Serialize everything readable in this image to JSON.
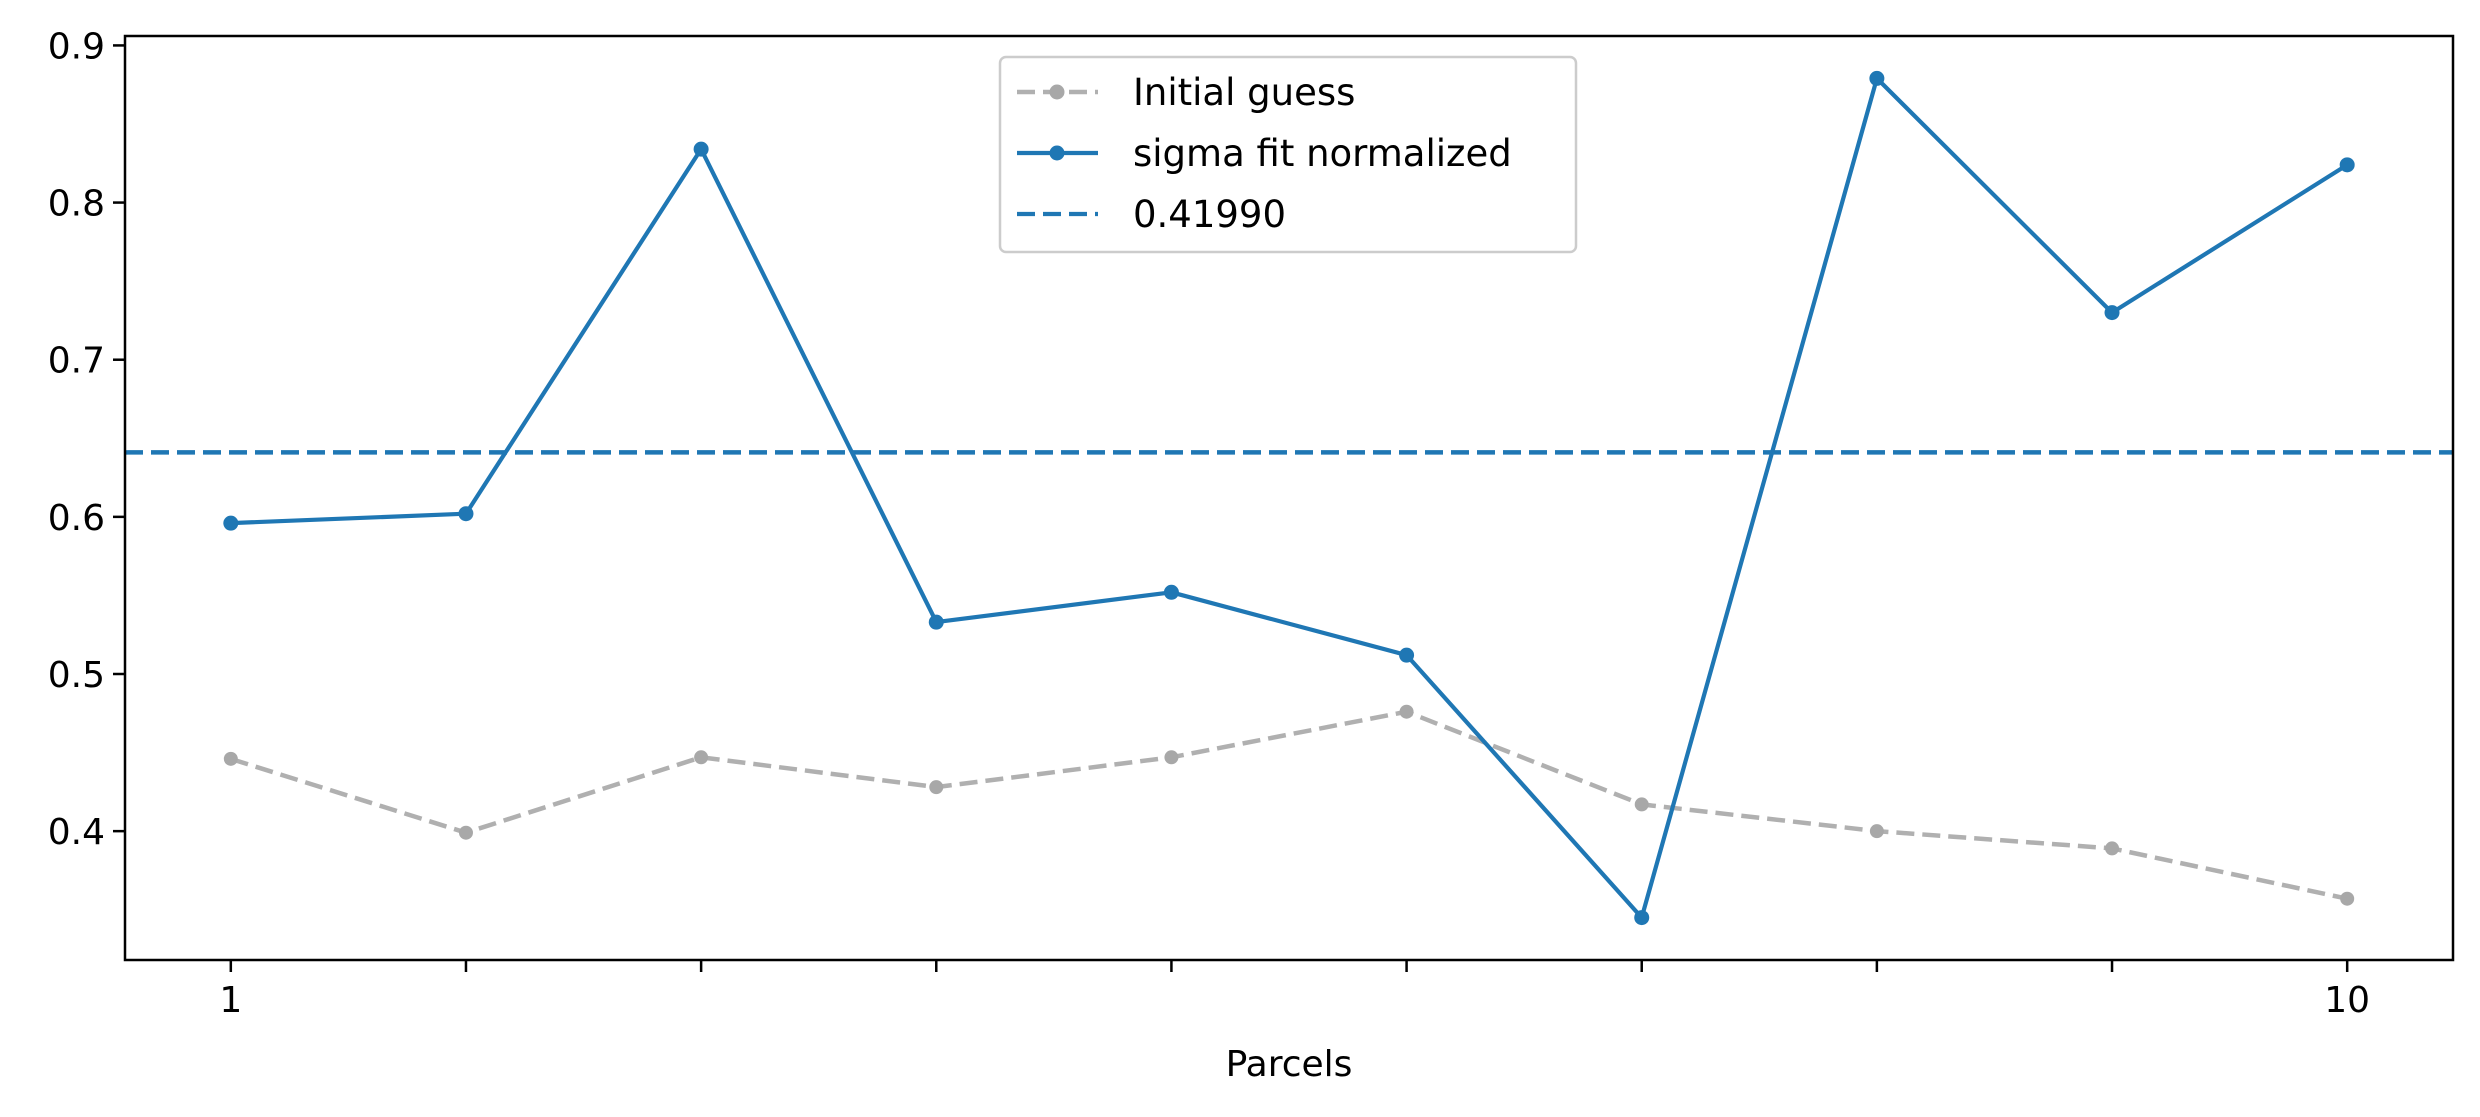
{
  "chart_data": {
    "type": "line",
    "title": "",
    "xlabel": "Parcels",
    "ylabel": "",
    "x": [
      1,
      2,
      3,
      4,
      5,
      6,
      7,
      8,
      9,
      10
    ],
    "xlim": [
      0.55,
      10.45
    ],
    "ylim": [
      0.318,
      0.906
    ],
    "x_tick_values": [
      1,
      2,
      3,
      4,
      5,
      6,
      7,
      8,
      9,
      10
    ],
    "x_tick_labels": [
      "1",
      "",
      "",
      "",
      "",
      "",
      "",
      "",
      "",
      "10"
    ],
    "y_ticks": [
      0.4,
      0.5,
      0.6,
      0.7,
      0.8,
      0.9
    ],
    "y_tick_labels": [
      "0.4",
      "0.5",
      "0.6",
      "0.7",
      "0.8",
      "0.9"
    ],
    "grid": false,
    "legend_position": "top-center",
    "series": [
      {
        "name": "Initial guess",
        "style": "dashed-with-markers",
        "color": "#b0b0b0",
        "values": [
          0.446,
          0.399,
          0.447,
          0.428,
          0.447,
          0.476,
          0.417,
          0.4,
          0.389,
          0.357
        ]
      },
      {
        "name": "sigma fit normalized",
        "style": "solid-with-markers",
        "color": "#1f77b4",
        "values": [
          0.596,
          0.602,
          0.834,
          0.533,
          0.552,
          0.512,
          0.345,
          0.879,
          0.73,
          0.824
        ]
      }
    ],
    "reference_lines": [
      {
        "name": "0.41990",
        "orientation": "horizontal",
        "style": "dashed",
        "color": "#1f77b4",
        "y": 0.641
      }
    ]
  }
}
